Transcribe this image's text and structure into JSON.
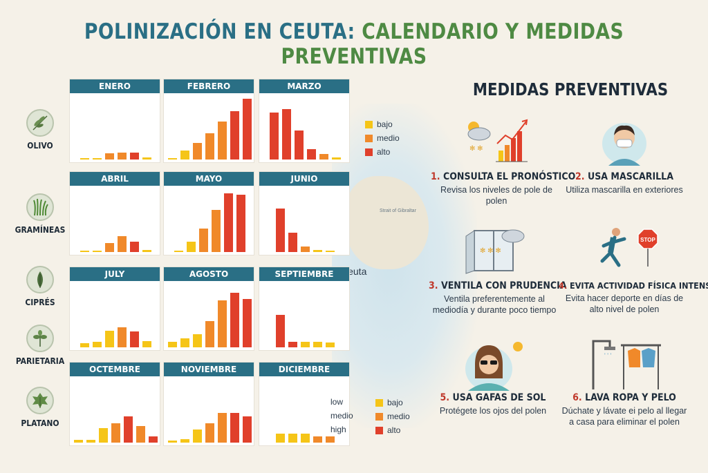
{
  "title": {
    "part1": "POLINIZACIÓN EN CEUTA:",
    "part2": "CALENDARIO Y MEDIDAS PREVENTIVAS"
  },
  "map": {
    "strait_label": "Strait of Gibraltar",
    "city_label": "Ceuta"
  },
  "plants": [
    "OLIVO",
    "GRAMÍNEAS",
    "CIPRÉS",
    "PARIETARIA",
    "PLATANO"
  ],
  "colors": {
    "bajo": "#f5c518",
    "medio": "#f0892a",
    "alto": "#e0402b",
    "header": "#2a6f85"
  },
  "legend": {
    "bajo": "bajo",
    "medio": "medio",
    "alto": "alto"
  },
  "legend_words": {
    "low": "low",
    "medio": "medio",
    "high": "high"
  },
  "chart_data": {
    "type": "bar",
    "levels": [
      "bajo",
      "medio",
      "alto"
    ],
    "rows": [
      {
        "months": [
          "ENERO",
          "FEBRERO",
          "MARZO"
        ]
      },
      {
        "months": [
          "ABRIL",
          "MAYO",
          "JUNIO"
        ]
      },
      {
        "months": [
          "JULY",
          "AGOSTO",
          "SEPTIEMBRE"
        ]
      },
      {
        "months": [
          "OCTEMBRE",
          "NOVIEMBRE",
          "DICIEMBRE"
        ]
      }
    ],
    "panels": [
      {
        "month": "ENERO",
        "bars": [
          [
            2,
            "bajo"
          ],
          [
            2,
            "bajo"
          ],
          [
            10,
            "medio"
          ],
          [
            11,
            "medio"
          ],
          [
            11,
            "alto"
          ],
          [
            3,
            "bajo"
          ]
        ]
      },
      {
        "month": "FEBRERO",
        "bars": [
          [
            2,
            "bajo"
          ],
          [
            14,
            "bajo"
          ],
          [
            26,
            "medio"
          ],
          [
            40,
            "medio"
          ],
          [
            58,
            "medio"
          ],
          [
            75,
            "alto"
          ],
          [
            94,
            "alto"
          ]
        ]
      },
      {
        "month": "MARZO",
        "bars": [
          [
            72,
            "alto"
          ],
          [
            78,
            "alto"
          ],
          [
            45,
            "alto"
          ],
          [
            16,
            "alto"
          ],
          [
            8,
            "medio"
          ],
          [
            3,
            "bajo"
          ]
        ]
      },
      {
        "month": "ABRIL",
        "bars": [
          [
            2,
            "bajo"
          ],
          [
            2,
            "bajo"
          ],
          [
            14,
            "medio"
          ],
          [
            24,
            "medio"
          ],
          [
            16,
            "alto"
          ],
          [
            3,
            "bajo"
          ]
        ]
      },
      {
        "month": "MAYO",
        "bars": [
          [
            2,
            "bajo"
          ],
          [
            16,
            "bajo"
          ],
          [
            36,
            "medio"
          ],
          [
            65,
            "medio"
          ],
          [
            90,
            "alto"
          ],
          [
            88,
            "alto"
          ]
        ]
      },
      {
        "month": "JUNIO",
        "bars": [
          [
            67,
            "alto"
          ],
          [
            30,
            "alto"
          ],
          [
            9,
            "medio"
          ],
          [
            3,
            "bajo"
          ],
          [
            2,
            "bajo"
          ]
        ]
      },
      {
        "month": "JULY",
        "bars": [
          [
            6,
            "bajo"
          ],
          [
            9,
            "bajo"
          ],
          [
            26,
            "bajo"
          ],
          [
            31,
            "medio"
          ],
          [
            24,
            "alto"
          ],
          [
            10,
            "bajo"
          ]
        ]
      },
      {
        "month": "AGOSTO",
        "bars": [
          [
            8,
            "bajo"
          ],
          [
            14,
            "bajo"
          ],
          [
            20,
            "bajo"
          ],
          [
            40,
            "medio"
          ],
          [
            72,
            "medio"
          ],
          [
            84,
            "alto"
          ],
          [
            74,
            "alto"
          ]
        ]
      },
      {
        "month": "SEPTIEMBRE",
        "bars": [
          [
            50,
            "alto"
          ],
          [
            9,
            "alto"
          ],
          [
            9,
            "bajo"
          ],
          [
            8,
            "bajo"
          ],
          [
            7,
            "bajo"
          ]
        ]
      },
      {
        "month": "OCTEMBRE",
        "bars": [
          [
            4,
            "bajo"
          ],
          [
            4,
            "bajo"
          ],
          [
            22,
            "bajo"
          ],
          [
            30,
            "medio"
          ],
          [
            40,
            "alto"
          ],
          [
            26,
            "medio"
          ],
          [
            10,
            "alto"
          ]
        ]
      },
      {
        "month": "NOVIEMBRE",
        "bars": [
          [
            3,
            "bajo"
          ],
          [
            5,
            "bajo"
          ],
          [
            20,
            "bajo"
          ],
          [
            30,
            "medio"
          ],
          [
            46,
            "medio"
          ],
          [
            46,
            "alto"
          ],
          [
            40,
            "alto"
          ]
        ]
      },
      {
        "month": "DICIEMBRE",
        "bars": [
          [
            14,
            "bajo"
          ],
          [
            14,
            "bajo"
          ],
          [
            14,
            "bajo"
          ],
          [
            10,
            "medio"
          ],
          [
            10,
            "medio"
          ]
        ]
      }
    ]
  },
  "measures": {
    "title": "MEDIDAS PREVENTIVAS",
    "items": [
      {
        "num": "1.",
        "title": "CONSULTA EL PRONÓSTICO",
        "desc": "Revisa los niveles de pole de polen",
        "icon": "forecast-icon"
      },
      {
        "num": "2.",
        "title": "USA MASCARILLA",
        "desc": "Utiliza mascarilla en exteriores",
        "icon": "mask-icon"
      },
      {
        "num": "3.",
        "title": "VENTILA CON PRUDENCIA",
        "desc": "Ventila preferentemente al mediodía y durante poco tiempo",
        "icon": "window-icon"
      },
      {
        "num": "4.",
        "title": "EVITA ACTIVIDAD FÍSICA INTENSA",
        "desc": "Evita hacer deporte en días de alto nivel de polen",
        "icon": "runner-icon",
        "stop": "STOP"
      },
      {
        "num": "5.",
        "title": "USA GAFAS DE SOL",
        "desc": "Protégete los ojos del polen",
        "icon": "sunglasses-icon"
      },
      {
        "num": "6.",
        "title": "LAVA ROPA Y PELO",
        "desc": "Dúchate y lávate ei pelo al llegar a casa para eliminar el polen",
        "icon": "shower-clothes-icon"
      }
    ]
  }
}
